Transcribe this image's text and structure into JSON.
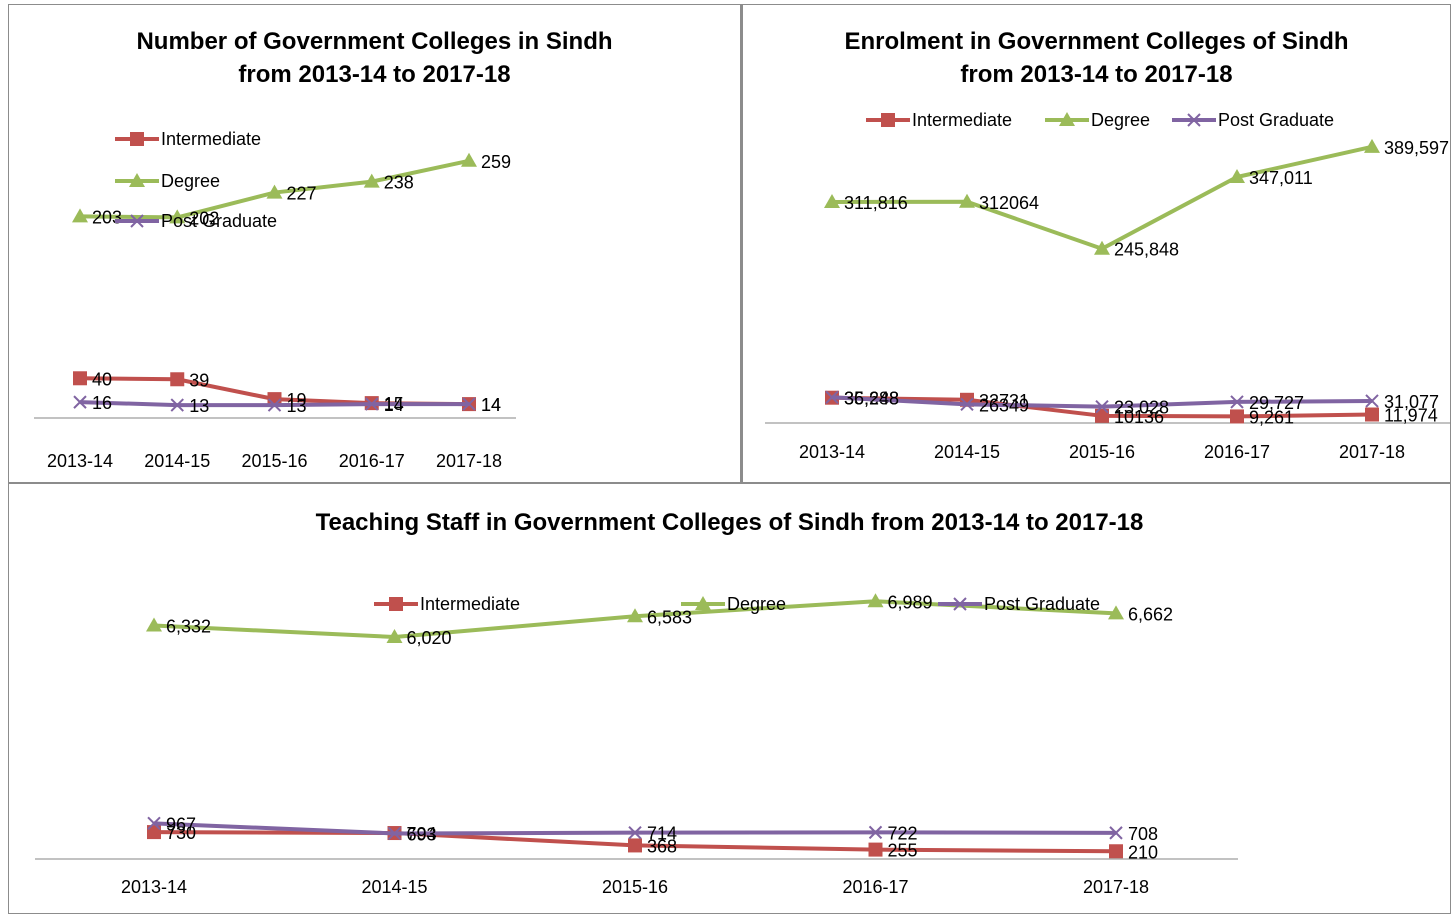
{
  "chart_data": [
    {
      "type": "line",
      "title_line1": "Number of Government Colleges in Sindh",
      "title_line2": "from 2013-14 to 2017-18",
      "categories": [
        "2013-14",
        "2014-15",
        "2015-16",
        "2016-17",
        "2017-18"
      ],
      "ylim": [
        0,
        290
      ],
      "legend_position": "top-left",
      "series": [
        {
          "name": "Intermediate",
          "color": "#c0504d",
          "marker": "square",
          "values": [
            40,
            39,
            19,
            15,
            14
          ],
          "labels": [
            "40",
            "39",
            "19",
            "15",
            "14"
          ]
        },
        {
          "name": "Degree",
          "color": "#9bbb59",
          "marker": "triangle",
          "values": [
            203,
            202,
            227,
            238,
            259
          ],
          "labels": [
            "203",
            "202",
            "227",
            "238",
            "259"
          ]
        },
        {
          "name": "Post Graduate",
          "color": "#8064a2",
          "marker": "x",
          "values": [
            16,
            13,
            13,
            14,
            14
          ],
          "labels": [
            "16",
            "13",
            "13",
            "14",
            "14"
          ]
        }
      ]
    },
    {
      "type": "line",
      "title_line1": "Enrolment in Government Colleges of Sindh",
      "title_line2": "from 2013-14 to 2017-18",
      "categories": [
        "2013-14",
        "2014-15",
        "2015-16",
        "2016-17",
        "2017-18"
      ],
      "ylim": [
        0,
        450000
      ],
      "legend_position": "top",
      "series": [
        {
          "name": "Intermediate",
          "color": "#c0504d",
          "marker": "square",
          "values": [
            35688,
            32731,
            10136,
            9261,
            11974
          ],
          "labels": [
            "35,688",
            "32731",
            "10136",
            "9,261",
            "11,974"
          ]
        },
        {
          "name": "Degree",
          "color": "#9bbb59",
          "marker": "triangle",
          "values": [
            311816,
            312064,
            245848,
            347011,
            389597
          ],
          "labels": [
            "311,816",
            "312064",
            "245,848",
            "347,011",
            "389,597"
          ]
        },
        {
          "name": "Post Graduate",
          "color": "#8064a2",
          "marker": "x",
          "values": [
            36248,
            26349,
            23028,
            29727,
            31077
          ],
          "labels": [
            "36,248",
            "26349",
            "23,028",
            "29,727",
            "31,077"
          ]
        }
      ]
    },
    {
      "type": "line",
      "title_line1": "Teaching Staff in Government Colleges of Sindh from 2013-14 to 2017-18",
      "title_line2": "",
      "categories": [
        "2013-14",
        "2014-15",
        "2015-16",
        "2016-17",
        "2017-18"
      ],
      "ylim": [
        0,
        8000
      ],
      "legend_position": "top",
      "series": [
        {
          "name": "Intermediate",
          "color": "#c0504d",
          "marker": "square",
          "values": [
            730,
            704,
            368,
            255,
            210
          ],
          "labels": [
            "730",
            "704",
            "368",
            "255",
            "210"
          ]
        },
        {
          "name": "Degree",
          "color": "#9bbb59",
          "marker": "triangle",
          "values": [
            6332,
            6020,
            6583,
            6989,
            6662
          ],
          "labels": [
            "6,332",
            "6,020",
            "6,583",
            "6,989",
            "6,662"
          ]
        },
        {
          "name": "Post Graduate",
          "color": "#8064a2",
          "marker": "x",
          "values": [
            967,
            693,
            714,
            722,
            708
          ],
          "labels": [
            "967",
            "693",
            "714",
            "722",
            "708"
          ]
        }
      ]
    }
  ]
}
